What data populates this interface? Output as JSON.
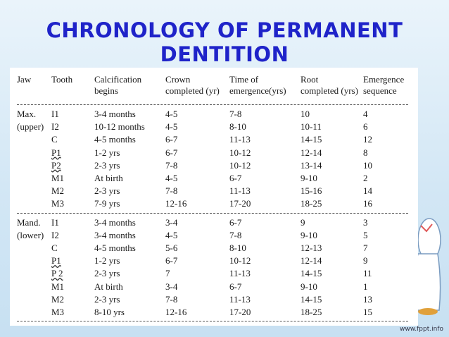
{
  "title_line1": "CHRONOLOGY OF PERMANENT",
  "title_line2": "DENTITION",
  "table": {
    "headers": [
      [
        "Jaw",
        ""
      ],
      [
        "Tooth",
        ""
      ],
      [
        "Calcification",
        "begins"
      ],
      [
        "Crown",
        "completed (yr)"
      ],
      [
        "Time of",
        "emergence(yrs)"
      ],
      [
        "Root",
        "completed (yrs)"
      ],
      [
        "Emergence",
        "sequence"
      ]
    ],
    "groups": [
      {
        "rows": [
          [
            "Max.",
            "I1",
            "3-4 months",
            "4-5",
            "7-8",
            "10",
            "4"
          ],
          [
            "(upper)",
            "I2",
            "10-12 months",
            "4-5",
            "8-10",
            "10-11",
            "6"
          ],
          [
            "",
            "C",
            "4-5 months",
            "6-7",
            "11-13",
            "14-15",
            "12"
          ],
          [
            "",
            "P1",
            "1-2 yrs",
            "6-7",
            "10-12",
            "12-14",
            "8"
          ],
          [
            "",
            "P2",
            "2-3 yrs",
            "7-8",
            "10-12",
            "13-14",
            "10"
          ],
          [
            "",
            "M1",
            "At birth",
            "4-5",
            "6-7",
            "9-10",
            "2"
          ],
          [
            "",
            "M2",
            "2-3 yrs",
            "7-8",
            "11-13",
            "15-16",
            "14"
          ],
          [
            "",
            "M3",
            "7-9 yrs",
            "12-16",
            "17-20",
            "18-25",
            "16"
          ]
        ]
      },
      {
        "rows": [
          [
            "Mand.",
            "I1",
            "3-4 months",
            "3-4",
            "6-7",
            "9",
            "3"
          ],
          [
            "(lower)",
            "I2",
            "3-4 months",
            "4-5",
            "7-8",
            "9-10",
            "5"
          ],
          [
            "",
            "C",
            "4-5 months",
            "5-6",
            "8-10",
            "12-13",
            "7"
          ],
          [
            "",
            "P1",
            "1-2 yrs",
            "6-7",
            "10-12",
            "12-14",
            "9"
          ],
          [
            "",
            "P 2",
            "2-3 yrs",
            "7",
            "11-13",
            "14-15",
            "11"
          ],
          [
            "",
            "M1",
            "At birth",
            "3-4",
            "6-7",
            "9-10",
            "1"
          ],
          [
            "",
            "M2",
            "2-3 yrs",
            "7-8",
            "11-13",
            "14-15",
            "13"
          ],
          [
            "",
            "M3",
            "8-10 yrs",
            "12-16",
            "17-20",
            "18-25",
            "15"
          ]
        ]
      }
    ]
  },
  "watermark": "www.fppt.info"
}
